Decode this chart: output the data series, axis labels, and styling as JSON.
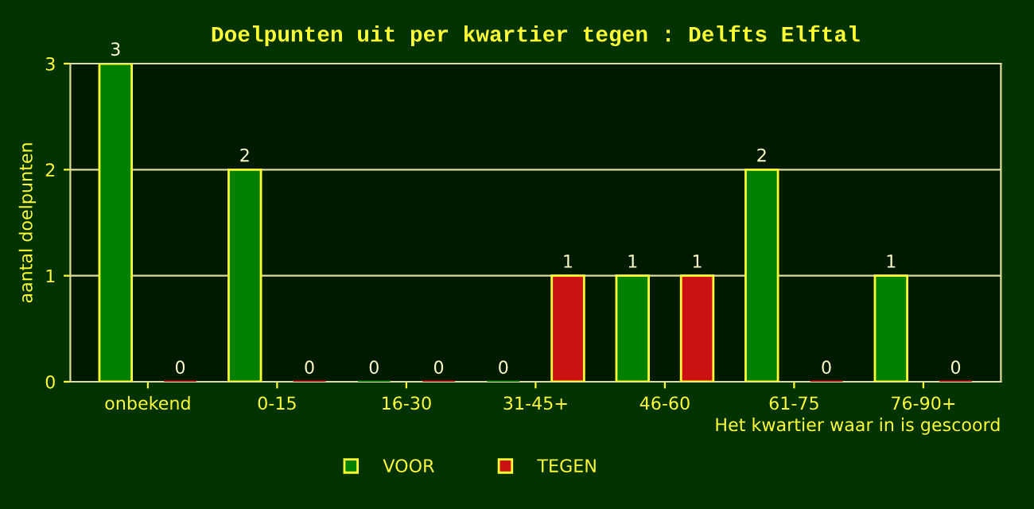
{
  "chart_data": {
    "type": "bar",
    "title": "Doelpunten uit per kwartier tegen : Delfts Elftal",
    "categories": [
      "onbekend",
      "0-15",
      "16-30",
      "31-45+",
      "46-60",
      "61-75",
      "76-90+"
    ],
    "series": [
      {
        "name": "VOOR",
        "color": "#008000",
        "values": [
          3,
          2,
          0,
          0,
          1,
          2,
          1
        ]
      },
      {
        "name": "TEGEN",
        "color": "#cc1111",
        "values": [
          0,
          0,
          0,
          1,
          1,
          0,
          0
        ]
      }
    ],
    "xlabel": "Het kwartier waar in is gescoord",
    "ylabel": "aantal doelpunten",
    "ylim": [
      0,
      3
    ],
    "yticks": [
      0,
      1,
      2,
      3
    ],
    "grid": "y",
    "legend": "bottom",
    "data_labels": true
  }
}
